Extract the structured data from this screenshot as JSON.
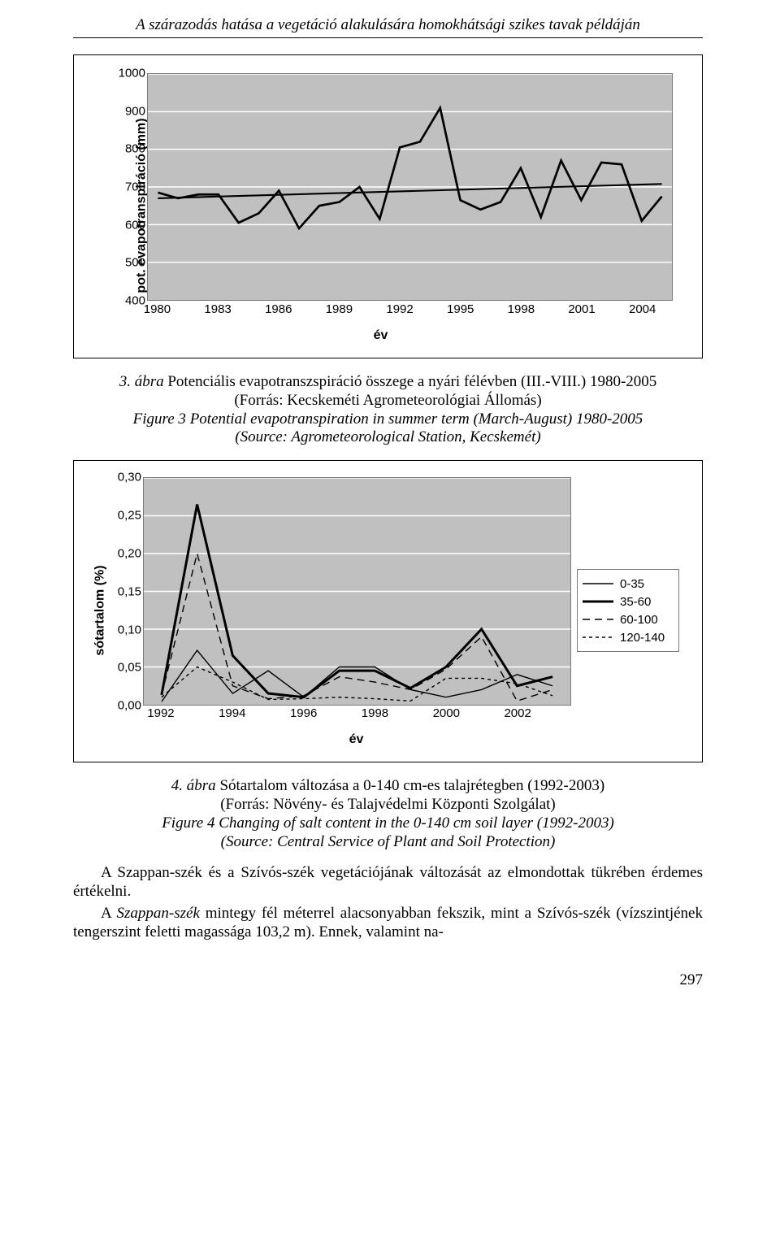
{
  "header": {
    "running_title": "A szárazodás hatása a vegetáció alakulására homokhátsági szikes tavak példáján"
  },
  "chart1": {
    "type": "line",
    "ylabel": "pot. evapotranspiráció (mm)",
    "xlabel": "év",
    "ylim": [
      400,
      1000
    ],
    "ytick_step": 100,
    "yticks": [
      400,
      500,
      600,
      700,
      800,
      900,
      1000
    ],
    "xlim": [
      1980,
      2005
    ],
    "xticks": [
      1980,
      1983,
      1986,
      1989,
      1992,
      1995,
      1998,
      2001,
      2004
    ],
    "background_color": "#c0c0c0",
    "grid_color": "#ffffff",
    "series_color": "#000000",
    "series_width": 2.7,
    "trend_color": "#000000",
    "trend_width": 2.1,
    "trend_start": [
      1980,
      670
    ],
    "trend_end": [
      2005,
      708
    ],
    "values": [
      [
        1980,
        685
      ],
      [
        1981,
        670
      ],
      [
        1982,
        680
      ],
      [
        1983,
        680
      ],
      [
        1984,
        605
      ],
      [
        1985,
        630
      ],
      [
        1986,
        690
      ],
      [
        1987,
        590
      ],
      [
        1988,
        650
      ],
      [
        1989,
        660
      ],
      [
        1990,
        700
      ],
      [
        1991,
        615
      ],
      [
        1992,
        805
      ],
      [
        1993,
        820
      ],
      [
        1994,
        910
      ],
      [
        1995,
        665
      ],
      [
        1996,
        640
      ],
      [
        1997,
        660
      ],
      [
        1998,
        750
      ],
      [
        1999,
        620
      ],
      [
        2000,
        770
      ],
      [
        2001,
        665
      ],
      [
        2002,
        765
      ],
      [
        2003,
        760
      ],
      [
        2004,
        610
      ],
      [
        2005,
        675
      ]
    ]
  },
  "caption1": {
    "label_prefix": "3. ábra",
    "text_hu": " Potenciális evapotranszspiráció összege a nyári félévben (III.-VIII.) 1980-2005",
    "source_hu": "(Forrás: Kecskeméti Agrometeorológiai Állomás)",
    "fig_en": "Figure 3",
    "text_en": " Potential evapotranspiration in summer term (March-August) 1980-2005",
    "source_en": "(Source: Agrometeorological Station, Kecskemét)"
  },
  "chart2": {
    "type": "line",
    "ylabel": "sótartalom (%)",
    "xlabel": "év",
    "ylim": [
      0.0,
      0.3
    ],
    "yticks": [
      "0,00",
      "0,05",
      "0,10",
      "0,15",
      "0,20",
      "0,25",
      "0,30"
    ],
    "xlim": [
      1992,
      2003
    ],
    "xticks": [
      1992,
      1994,
      1996,
      1998,
      2000,
      2002
    ],
    "background_color": "#c0c0c0",
    "grid_color": "#ffffff",
    "series": [
      {
        "name": "0-35",
        "color": "#000000",
        "width": 1.4,
        "dash": "",
        "points": [
          [
            1992,
            0.004
          ],
          [
            1993,
            0.072
          ],
          [
            1994,
            0.015
          ],
          [
            1995,
            0.045
          ],
          [
            1996,
            0.01
          ],
          [
            1997,
            0.05
          ],
          [
            1998,
            0.05
          ],
          [
            1999,
            0.02
          ],
          [
            2000,
            0.01
          ],
          [
            2001,
            0.02
          ],
          [
            2002,
            0.04
          ],
          [
            2003,
            0.025
          ]
        ]
      },
      {
        "name": "35-60",
        "color": "#000000",
        "width": 3.0,
        "dash": "",
        "points": [
          [
            1992,
            0.013
          ],
          [
            1993,
            0.265
          ],
          [
            1994,
            0.065
          ],
          [
            1995,
            0.015
          ],
          [
            1996,
            0.01
          ],
          [
            1997,
            0.045
          ],
          [
            1998,
            0.045
          ],
          [
            1999,
            0.022
          ],
          [
            2000,
            0.05
          ],
          [
            2001,
            0.1
          ],
          [
            2002,
            0.025
          ],
          [
            2003,
            0.037
          ]
        ]
      },
      {
        "name": "60-100",
        "color": "#000000",
        "width": 1.4,
        "dash": "9,6",
        "points": [
          [
            1992,
            0.013
          ],
          [
            1993,
            0.2
          ],
          [
            1994,
            0.025
          ],
          [
            1995,
            0.008
          ],
          [
            1996,
            0.012
          ],
          [
            1997,
            0.037
          ],
          [
            1998,
            0.03
          ],
          [
            1999,
            0.02
          ],
          [
            2000,
            0.047
          ],
          [
            2001,
            0.09
          ],
          [
            2002,
            0.005
          ],
          [
            2003,
            0.02
          ]
        ]
      },
      {
        "name": "120-140",
        "color": "#000000",
        "width": 1.4,
        "dash": "4,4",
        "points": [
          [
            1992,
            0.01
          ],
          [
            1993,
            0.05
          ],
          [
            1994,
            0.03
          ],
          [
            1995,
            0.007
          ],
          [
            1996,
            0.008
          ],
          [
            1997,
            0.01
          ],
          [
            1998,
            0.008
          ],
          [
            1999,
            0.005
          ],
          [
            2000,
            0.035
          ],
          [
            2001,
            0.035
          ],
          [
            2002,
            0.028
          ],
          [
            2003,
            0.012
          ]
        ]
      }
    ],
    "legend_labels": [
      "0-35",
      "35-60",
      "60-100",
      "120-140"
    ],
    "legend_styles": [
      {
        "width": 1.4,
        "dash": ""
      },
      {
        "width": 3.0,
        "dash": ""
      },
      {
        "width": 1.4,
        "dash": "9,6"
      },
      {
        "width": 1.4,
        "dash": "4,4"
      }
    ]
  },
  "caption2": {
    "label_prefix": "4. ábra",
    "text_hu": " Sótartalom változása a 0-140 cm-es talajrétegben (1992-2003)",
    "source_hu": "(Forrás: Növény- és Talajvédelmi Központi Szolgálat)",
    "fig_en": "Figure 4",
    "text_en": " Changing of salt content in the 0-140 cm soil layer (1992-2003)",
    "source_en": "(Source: Central Service of Plant and Soil Protection)"
  },
  "body": {
    "p1": "A Szappan-szék és a Szívós-szék vegetációjának változását az elmondottak tükrében érdemes értékelni.",
    "p2_a": "A ",
    "p2_i": "Szappan-szék",
    "p2_b": " mintegy fél méterrel alacsonyabban fekszik, mint a Szívós-szék (vízszintjének tengerszint feletti magassága 103,2 m). Ennek, valamint na-"
  },
  "page_number": "297"
}
